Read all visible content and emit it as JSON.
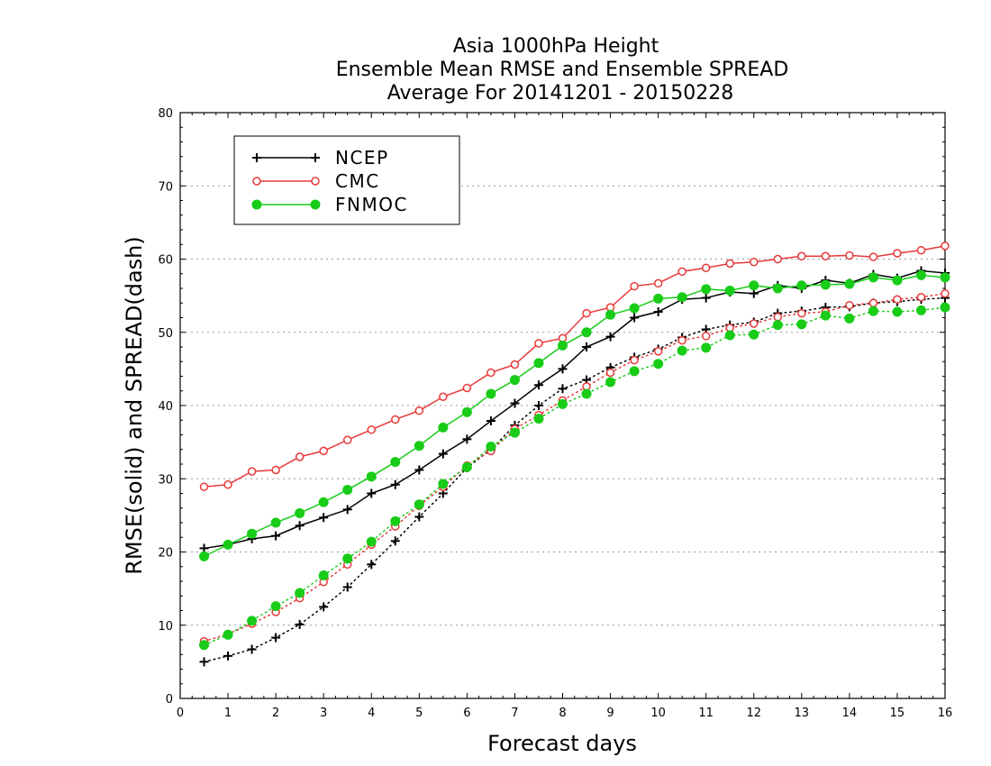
{
  "chart_data": {
    "type": "line",
    "title": [
      "Asia 1000hPa Height",
      "Ensemble Mean RMSE and Ensemble SPREAD",
      "Average For 20141201 - 20150228"
    ],
    "xlabel": "Forecast days",
    "ylabel": "RMSE(solid) and SPREAD(dash)",
    "xlim": [
      0,
      16
    ],
    "ylim": [
      0,
      80
    ],
    "xticks": [
      "0",
      "1",
      "2",
      "3",
      "4",
      "5",
      "6",
      "7",
      "8",
      "9",
      "10",
      "11",
      "12",
      "13",
      "14",
      "15",
      "16"
    ],
    "yticks": [
      "0",
      "10",
      "20",
      "30",
      "40",
      "50",
      "60",
      "70",
      "80"
    ],
    "grid": "horizontal dotted",
    "legend_position": "top-left",
    "x": [
      0.5,
      1,
      1.5,
      2,
      2.5,
      3,
      3.5,
      4,
      4.5,
      5,
      5.5,
      6,
      6.5,
      7,
      7.5,
      8,
      8.5,
      9,
      9.5,
      10,
      10.5,
      11,
      11.5,
      12,
      12.5,
      13,
      13.5,
      14,
      14.5,
      15,
      15.5,
      16
    ],
    "series": [
      {
        "name": "NCEP",
        "color": "#000000",
        "marker": "plus",
        "rmse": [
          20.5,
          21.0,
          21.8,
          22.2,
          23.6,
          24.7,
          25.8,
          28.0,
          29.2,
          31.2,
          33.4,
          35.4,
          37.9,
          40.3,
          42.8,
          45.0,
          48.0,
          49.4,
          52.0,
          52.8,
          54.5,
          54.7,
          55.5,
          55.3,
          56.4,
          56.0,
          57.1,
          56.7,
          57.9,
          57.4,
          58.4,
          58.1
        ],
        "spread": [
          5.0,
          5.8,
          6.7,
          8.3,
          10.1,
          12.5,
          15.2,
          18.3,
          21.5,
          24.8,
          28.0,
          31.5,
          34.0,
          37.3,
          40.0,
          42.3,
          43.5,
          45.2,
          46.6,
          47.7,
          49.3,
          50.4,
          51.0,
          51.4,
          52.6,
          52.9,
          53.4,
          53.5,
          54.0,
          54.2,
          54.5,
          54.7
        ]
      },
      {
        "name": "CMC",
        "color": "#e83838",
        "marker": "open-circle",
        "rmse": [
          28.9,
          29.2,
          31.0,
          31.2,
          33.0,
          33.8,
          35.3,
          36.7,
          38.1,
          39.3,
          41.2,
          42.4,
          44.5,
          45.6,
          48.5,
          49.2,
          52.6,
          53.4,
          56.3,
          56.7,
          58.3,
          58.8,
          59.4,
          59.6,
          60.0,
          60.4,
          60.4,
          60.5,
          60.3,
          60.8,
          61.2,
          61.8
        ],
        "spread": [
          7.8,
          8.8,
          10.2,
          11.8,
          13.7,
          15.9,
          18.3,
          21.0,
          23.5,
          26.3,
          28.9,
          31.8,
          33.8,
          36.8,
          38.7,
          40.7,
          42.6,
          44.5,
          46.2,
          47.4,
          48.9,
          49.5,
          50.6,
          51.2,
          52.1,
          52.6,
          52.8,
          53.7,
          54.0,
          54.5,
          54.8,
          55.3
        ]
      },
      {
        "name": "FNMOC",
        "color": "#18cc18",
        "marker": "filled-circle",
        "rmse": [
          19.4,
          21.0,
          22.5,
          24.0,
          25.3,
          26.8,
          28.5,
          30.3,
          32.3,
          34.5,
          37.0,
          39.1,
          41.6,
          43.5,
          45.8,
          48.2,
          50.0,
          52.4,
          53.3,
          54.6,
          54.8,
          55.9,
          55.7,
          56.4,
          56.0,
          56.4,
          56.5,
          56.6,
          57.5,
          57.1,
          57.8,
          57.5
        ],
        "spread": [
          7.3,
          8.7,
          10.6,
          12.6,
          14.4,
          16.8,
          19.1,
          21.4,
          24.2,
          26.5,
          29.3,
          31.6,
          34.4,
          36.3,
          38.2,
          40.2,
          41.6,
          43.2,
          44.7,
          45.7,
          47.5,
          47.9,
          49.6,
          49.7,
          51.0,
          51.1,
          52.3,
          51.9,
          52.9,
          52.8,
          53.0,
          53.4
        ]
      }
    ]
  }
}
